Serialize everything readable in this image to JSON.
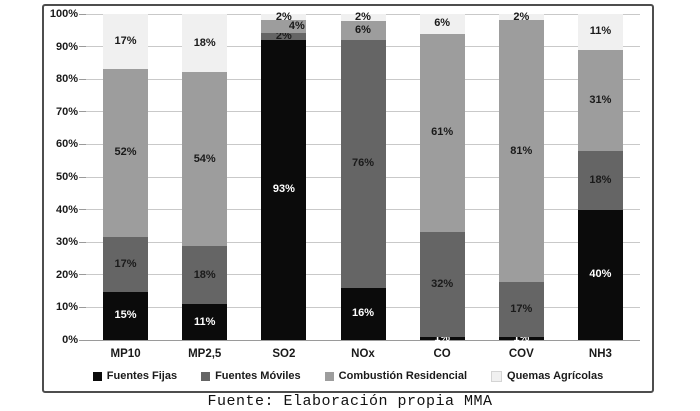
{
  "chart_data": {
    "type": "bar",
    "stacked": true,
    "percent_stacked": true,
    "title": "",
    "caption": "Fuente: Elaboración propia MMA",
    "categories": [
      "MP10",
      "MP2,5",
      "SO2",
      "NOx",
      "CO",
      "COV",
      "NH3"
    ],
    "series": [
      {
        "name": "Fuentes Fijas",
        "color": "#0b0b0b",
        "label_color": "#ffffff",
        "values": [
          15,
          11,
          93,
          16,
          1,
          1,
          40
        ]
      },
      {
        "name": "Fuentes Móviles",
        "color": "#656565",
        "label_color": "#1a1a1a",
        "values": [
          17,
          18,
          2,
          76,
          32,
          17,
          18
        ]
      },
      {
        "name": "Combustión Residencial",
        "color": "#9d9d9d",
        "label_color": "#1a1a1a",
        "values": [
          52,
          54,
          4,
          6,
          61,
          81,
          31
        ]
      },
      {
        "name": "Quemas Agrícolas",
        "color": "#f0f0f0",
        "label_color": "#1a1a1a",
        "values": [
          17,
          18,
          2,
          2,
          6,
          2,
          11
        ]
      }
    ],
    "value_suffix": "%",
    "y_ticks": [
      "0%",
      "10%",
      "20%",
      "30%",
      "40%",
      "50%",
      "60%",
      "70%",
      "80%",
      "90%",
      "100%"
    ],
    "ylim": [
      0,
      100
    ],
    "grid": true,
    "legend_position": "bottom",
    "colors": {
      "grid": "#c9c9c9",
      "axis": "#9a9a9a",
      "frame_border": "#4d4d4d",
      "text": "#1a1a1a"
    }
  }
}
